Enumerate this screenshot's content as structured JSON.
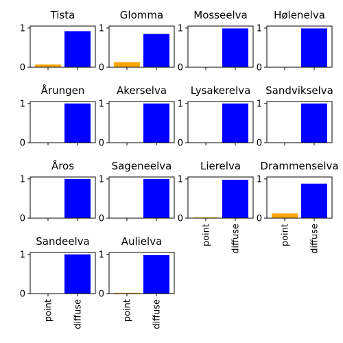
{
  "chart_data": {
    "type": "bar",
    "layout": "small-multiples",
    "categories": [
      "point",
      "diffuse"
    ],
    "bar_colors": [
      "#FFA500",
      "#0000FF"
    ],
    "ylim": [
      0,
      1.05
    ],
    "yticks": [
      0,
      1
    ],
    "grid": false,
    "panels": [
      {
        "title": "Tista",
        "values": [
          0.07,
          0.92
        ]
      },
      {
        "title": "Glomma",
        "values": [
          0.13,
          0.85
        ]
      },
      {
        "title": "Mosseelva",
        "values": [
          0.01,
          0.99
        ]
      },
      {
        "title": "Hølenelva",
        "values": [
          0.0,
          0.99
        ]
      },
      {
        "title": "Årungen",
        "values": [
          0.0,
          1.0
        ]
      },
      {
        "title": "Akerselva",
        "values": [
          0.0,
          1.0
        ]
      },
      {
        "title": "Lysakerelva",
        "values": [
          0.0,
          1.0
        ]
      },
      {
        "title": "Sandvikselva",
        "values": [
          0.0,
          1.0
        ]
      },
      {
        "title": "Åros",
        "values": [
          0.0,
          1.0
        ]
      },
      {
        "title": "Sageneelva",
        "values": [
          0.0,
          1.0
        ]
      },
      {
        "title": "Lierelva",
        "values": [
          0.02,
          0.98
        ]
      },
      {
        "title": "Drammenselva",
        "values": [
          0.12,
          0.88
        ]
      },
      {
        "title": "Sandeelva",
        "values": [
          0.0,
          1.0
        ]
      },
      {
        "title": "Aulielva",
        "values": [
          0.02,
          0.98
        ]
      }
    ]
  }
}
